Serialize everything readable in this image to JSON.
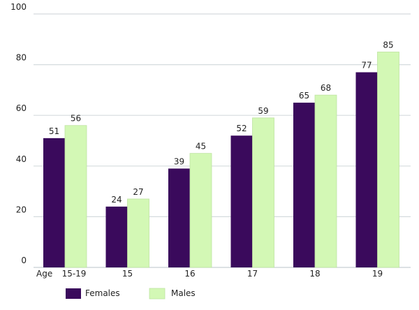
{
  "chart_data": {
    "type": "bar",
    "title": "",
    "xlabel": "Age",
    "ylabel": "",
    "ylim": [
      0,
      100
    ],
    "yticks": [
      0,
      20,
      40,
      60,
      80,
      100
    ],
    "grid": true,
    "legend_position": "bottom-left",
    "categories": [
      "15-19",
      "15",
      "16",
      "17",
      "18",
      "19"
    ],
    "series": [
      {
        "name": "Females",
        "color": "#3a0a5c",
        "values": [
          51,
          24,
          39,
          52,
          65,
          77
        ]
      },
      {
        "name": "Males",
        "color": "#d3f8b5",
        "values": [
          56,
          27,
          45,
          59,
          68,
          85
        ]
      }
    ]
  }
}
